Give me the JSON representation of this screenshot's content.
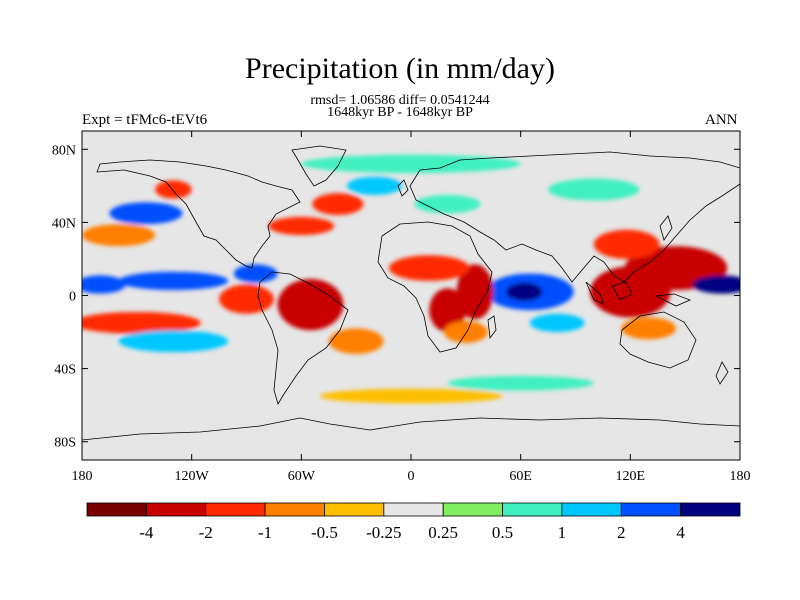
{
  "title": "Precipitation (in mm/day)",
  "stats": "rmsd= 1.06586 diff= 0.0541244",
  "period": "1648kyr BP - 1648kyr BP",
  "left_label": "Expt = tFMc6-tEVt6",
  "right_label": "ANN",
  "map": {
    "projection": "cylindrical-equidistant",
    "lon_range": [
      -180,
      180
    ],
    "lat_range": [
      -90,
      90
    ],
    "x_ticks": [
      {
        "lon": -180,
        "label": "180"
      },
      {
        "lon": -120,
        "label": "120W"
      },
      {
        "lon": -60,
        "label": "60W"
      },
      {
        "lon": 0,
        "label": "0"
      },
      {
        "lon": 60,
        "label": "60E"
      },
      {
        "lon": 120,
        "label": "120E"
      },
      {
        "lon": 180,
        "label": "180"
      }
    ],
    "y_ticks": [
      {
        "lat": 80,
        "label": "80N"
      },
      {
        "lat": 40,
        "label": "40N"
      },
      {
        "lat": 0,
        "label": "0"
      },
      {
        "lat": -40,
        "label": "40S"
      },
      {
        "lat": -80,
        "label": "80S"
      }
    ]
  },
  "colorbar": {
    "colors": [
      "#7a0000",
      "#c80000",
      "#ff2a00",
      "#ff7f00",
      "#ffbf00",
      "#e6e6e6",
      "#80f060",
      "#40f0c0",
      "#00c8ff",
      "#0050ff",
      "#000080"
    ],
    "labels": [
      "-4",
      "-2",
      "-1",
      "-0.5",
      "-0.25",
      "0.25",
      "0.5",
      "1",
      "2",
      "4"
    ]
  },
  "anomaly_regions": [
    {
      "name": "tropical-w-pacific-dry",
      "lon": 145,
      "lat": 15,
      "rx": 28,
      "ry": 12,
      "level": 1
    },
    {
      "name": "maritime-continent-dry",
      "lon": 120,
      "lat": 2,
      "rx": 22,
      "ry": 14,
      "level": 1
    },
    {
      "name": "w-pacific-wet-band",
      "lon": 170,
      "lat": 6,
      "rx": 16,
      "ry": 5,
      "level": 10
    },
    {
      "name": "w-pacific-wet-band-w",
      "lon": -170,
      "lat": 6,
      "rx": 14,
      "ry": 5,
      "level": 9
    },
    {
      "name": "east-asia-dry",
      "lon": 118,
      "lat": 28,
      "rx": 18,
      "ry": 8,
      "level": 2
    },
    {
      "name": "indian-ocean-wet",
      "lon": 65,
      "lat": 2,
      "rx": 24,
      "ry": 10,
      "level": 9
    },
    {
      "name": "indian-ocean-wet-core",
      "lon": 62,
      "lat": 2,
      "rx": 10,
      "ry": 5,
      "level": 10
    },
    {
      "name": "east-africa-dry",
      "lon": 35,
      "lat": 2,
      "rx": 10,
      "ry": 15,
      "level": 1
    },
    {
      "name": "sahel-dry",
      "lon": 10,
      "lat": 15,
      "rx": 22,
      "ry": 7,
      "level": 2
    },
    {
      "name": "congo-dry",
      "lon": 20,
      "lat": -8,
      "rx": 10,
      "ry": 12,
      "level": 1
    },
    {
      "name": "south-africa-dry",
      "lon": 30,
      "lat": -20,
      "rx": 12,
      "ry": 6,
      "level": 3
    },
    {
      "name": "amazon-dry",
      "lon": -55,
      "lat": -5,
      "rx": 18,
      "ry": 14,
      "level": 1
    },
    {
      "name": "e-pacific-dry",
      "lon": -90,
      "lat": -2,
      "rx": 15,
      "ry": 8,
      "level": 2
    },
    {
      "name": "central-america-wet",
      "lon": -85,
      "lat": 12,
      "rx": 12,
      "ry": 5,
      "level": 9
    },
    {
      "name": "e-pacific-itcz-wet",
      "lon": -130,
      "lat": 8,
      "rx": 30,
      "ry": 5,
      "level": 9
    },
    {
      "name": "s-pacific-dry",
      "lon": -150,
      "lat": -15,
      "rx": 35,
      "ry": 6,
      "level": 2
    },
    {
      "name": "south-pacific-wet",
      "lon": -130,
      "lat": -25,
      "rx": 30,
      "ry": 6,
      "level": 8
    },
    {
      "name": "south-atlantic-dry",
      "lon": -30,
      "lat": -25,
      "rx": 15,
      "ry": 7,
      "level": 3
    },
    {
      "name": "n-atlantic-dry",
      "lon": -40,
      "lat": 50,
      "rx": 14,
      "ry": 6,
      "level": 2
    },
    {
      "name": "gulf-stream-dry",
      "lon": -60,
      "lat": 38,
      "rx": 18,
      "ry": 5,
      "level": 2
    },
    {
      "name": "n-pacific-wet",
      "lon": -145,
      "lat": 45,
      "rx": 20,
      "ry": 6,
      "level": 9
    },
    {
      "name": "n-pacific-dry",
      "lon": -160,
      "lat": 33,
      "rx": 20,
      "ry": 6,
      "level": 3
    },
    {
      "name": "gulf-alaska-dry",
      "lon": -130,
      "lat": 58,
      "rx": 10,
      "ry": 5,
      "level": 2
    },
    {
      "name": "arctic-wet",
      "lon": 0,
      "lat": 72,
      "rx": 60,
      "ry": 5,
      "level": 7
    },
    {
      "name": "siberia-wet",
      "lon": 100,
      "lat": 58,
      "rx": 25,
      "ry": 6,
      "level": 7
    },
    {
      "name": "southern-ocean-dry",
      "lon": 0,
      "lat": -55,
      "rx": 50,
      "ry": 4,
      "level": 4
    },
    {
      "name": "southern-ocean-wet",
      "lon": 60,
      "lat": -48,
      "rx": 40,
      "ry": 4,
      "level": 7
    },
    {
      "name": "australia-dry",
      "lon": 130,
      "lat": -18,
      "rx": 15,
      "ry": 6,
      "level": 3
    },
    {
      "name": "indian-s-wet",
      "lon": 80,
      "lat": -15,
      "rx": 15,
      "ry": 5,
      "level": 8
    },
    {
      "name": "n-atlantic-wet",
      "lon": -20,
      "lat": 60,
      "rx": 15,
      "ry": 5,
      "level": 8
    },
    {
      "name": "europe-wet",
      "lon": 20,
      "lat": 50,
      "rx": 18,
      "ry": 5,
      "level": 7
    }
  ]
}
